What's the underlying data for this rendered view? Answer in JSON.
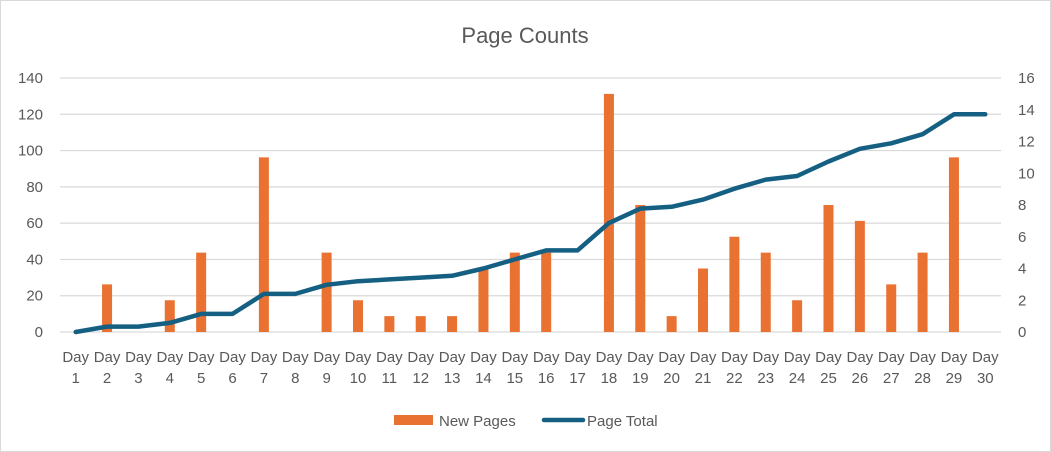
{
  "chart_data": {
    "type": "bar+line",
    "title": "Page Counts",
    "categories": [
      "Day 1",
      "Day 2",
      "Day 3",
      "Day 4",
      "Day 5",
      "Day 6",
      "Day 7",
      "Day 8",
      "Day 9",
      "Day 10",
      "Day 11",
      "Day 12",
      "Day 13",
      "Day 14",
      "Day 15",
      "Day 16",
      "Day 17",
      "Day 18",
      "Day 19",
      "Day 20",
      "Day 21",
      "Day 22",
      "Day 23",
      "Day 24",
      "Day 25",
      "Day 26",
      "Day 27",
      "Day 28",
      "Day 29",
      "Day 30"
    ],
    "series": [
      {
        "name": "New Pages",
        "type": "bar",
        "axis": "right",
        "color": "#E97132",
        "values": [
          0,
          3,
          0,
          2,
          5,
          0,
          11,
          0,
          5,
          2,
          1,
          1,
          1,
          4,
          5,
          5,
          0,
          15,
          8,
          1,
          4,
          6,
          5,
          2,
          8,
          7,
          3,
          5,
          11,
          0
        ]
      },
      {
        "name": "Page Total",
        "type": "line",
        "axis": "left",
        "color": "#156082",
        "values": [
          0,
          3,
          3,
          5,
          10,
          10,
          21,
          21,
          26,
          28,
          29,
          30,
          31,
          35,
          40,
          45,
          45,
          60,
          68,
          69,
          73,
          79,
          84,
          86,
          94,
          101,
          104,
          109,
          120,
          120
        ]
      }
    ],
    "left_axis": {
      "min": 0,
      "max": 140,
      "step": 20,
      "ticks": [
        "0",
        "20",
        "40",
        "60",
        "80",
        "100",
        "120",
        "140"
      ]
    },
    "right_axis": {
      "min": 0,
      "max": 16,
      "step": 2,
      "ticks": [
        "0",
        "2",
        "4",
        "6",
        "8",
        "10",
        "12",
        "14",
        "16"
      ]
    },
    "xlabel": "",
    "ylabel": "",
    "grid": true,
    "legend_position": "bottom"
  }
}
